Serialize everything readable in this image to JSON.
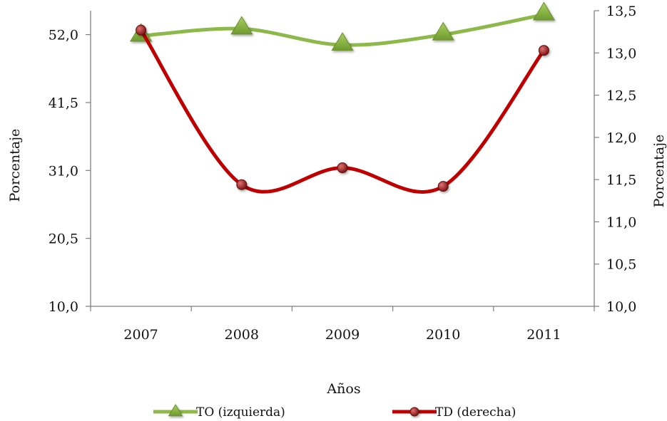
{
  "chart_data": {
    "type": "line",
    "categories": [
      "2007",
      "2008",
      "2009",
      "2010",
      "2011"
    ],
    "xlabel": "Años",
    "ylabel_left": "Porcentaje",
    "ylabel_right": "Porcentaje",
    "y_left": {
      "ylim": [
        10.0,
        55.7
      ],
      "ticks": [
        "10,0",
        "20,5",
        "31,0",
        "41,5",
        "52,0"
      ],
      "tick_values": [
        10.0,
        20.5,
        31.0,
        41.5,
        52.0
      ]
    },
    "y_right": {
      "ylim": [
        10.0,
        13.5
      ],
      "ticks": [
        "10,0",
        "10,5",
        "11,0",
        "11,5",
        "12,0",
        "12,5",
        "13,0",
        "13,5"
      ],
      "tick_values": [
        10.0,
        10.5,
        11.0,
        11.5,
        12.0,
        12.5,
        13.0,
        13.5
      ]
    },
    "series": [
      {
        "name": "TO (izquierda)",
        "axis": "left",
        "values": [
          51.8,
          52.9,
          50.4,
          52.0,
          55.1
        ],
        "color": "#8db84a",
        "marker": "triangle"
      },
      {
        "name": "TD (derecha)",
        "axis": "right",
        "values": [
          13.27,
          11.44,
          11.64,
          11.42,
          13.03
        ],
        "color": "#c00000",
        "marker": "circle"
      }
    ],
    "grid": false,
    "legend_position": "bottom"
  }
}
